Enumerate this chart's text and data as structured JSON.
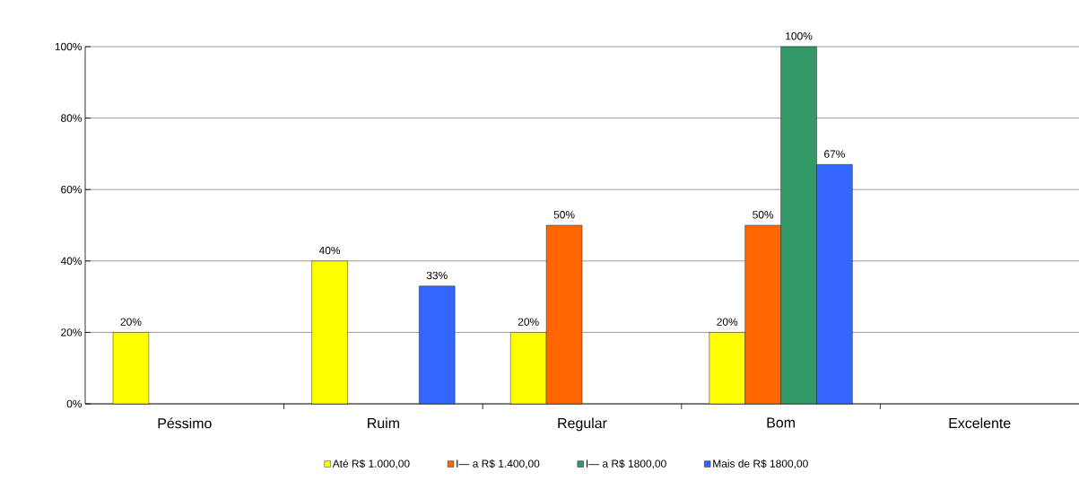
{
  "chart_data": {
    "type": "bar",
    "categories": [
      "Péssimo",
      "Ruim",
      "Regular",
      "Bom",
      "Excelente"
    ],
    "series": [
      {
        "name": "Até  R$ 1.000,00",
        "color": "#ffff00",
        "values": [
          20,
          40,
          20,
          20,
          null
        ],
        "value_labels": [
          "20%",
          "40%",
          "20%",
          "20%",
          null
        ]
      },
      {
        "name": "I— a R$ 1.400,00",
        "color": "#ff6600",
        "values": [
          null,
          null,
          50,
          50,
          null
        ],
        "value_labels": [
          null,
          null,
          "50%",
          "50%",
          null
        ]
      },
      {
        "name": "I— a R$ 1800,00",
        "color": "#339966",
        "values": [
          null,
          null,
          null,
          100,
          null
        ],
        "value_labels": [
          null,
          null,
          null,
          "100%",
          null
        ]
      },
      {
        "name": "Mais de R$ 1800,00",
        "color": "#3366ff",
        "values": [
          null,
          33,
          null,
          67,
          null
        ],
        "value_labels": [
          null,
          "33%",
          null,
          "67%",
          null
        ]
      }
    ],
    "ylim": [
      0,
      100
    ],
    "yticks": [
      {
        "value": 0,
        "label": "0%"
      },
      {
        "value": 20,
        "label": "20%"
      },
      {
        "value": 40,
        "label": "40%"
      },
      {
        "value": 60,
        "label": "60%"
      },
      {
        "value": 80,
        "label": "80%"
      },
      {
        "value": 100,
        "label": "100%"
      }
    ],
    "grid": "y",
    "legend": "bottom"
  }
}
